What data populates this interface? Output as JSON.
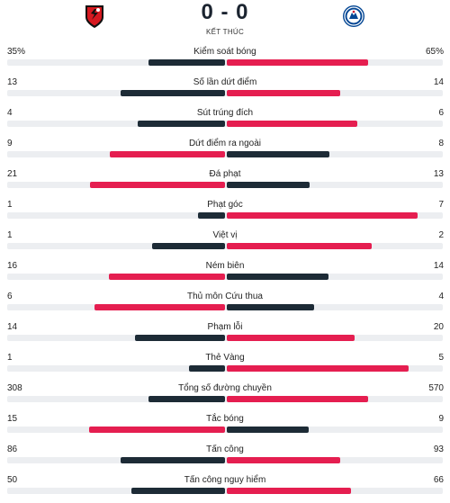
{
  "match": {
    "score": "0 - 0",
    "status": "KẾT THÚC",
    "home_crest": "bournemouth-crest-icon",
    "away_crest": "chelsea-crest-icon"
  },
  "colors": {
    "home_bar": "#1d2b36",
    "away_bar": "#e51e50",
    "track": "#eceef1"
  },
  "stats": [
    {
      "label": "Kiểm soát bóng",
      "home": "35%",
      "away": "65%",
      "home_share": 0.35,
      "away_share": 0.65,
      "home_highlight": false
    },
    {
      "label": "Số lần dứt điểm",
      "home": "13",
      "away": "14",
      "home_share": 0.481,
      "away_share": 0.519,
      "home_highlight": false
    },
    {
      "label": "Sút trúng đích",
      "home": "4",
      "away": "6",
      "home_share": 0.4,
      "away_share": 0.6,
      "home_highlight": false
    },
    {
      "label": "Dứt điểm ra ngoài",
      "home": "9",
      "away": "8",
      "home_share": 0.529,
      "away_share": 0.471,
      "home_highlight": true
    },
    {
      "label": "Đá phạt",
      "home": "21",
      "away": "13",
      "home_share": 0.618,
      "away_share": 0.382,
      "home_highlight": true
    },
    {
      "label": "Phạt góc",
      "home": "1",
      "away": "7",
      "home_share": 0.125,
      "away_share": 0.875,
      "home_highlight": false
    },
    {
      "label": "Việt vị",
      "home": "1",
      "away": "2",
      "home_share": 0.333,
      "away_share": 0.667,
      "home_highlight": false
    },
    {
      "label": "Ném biên",
      "home": "16",
      "away": "14",
      "home_share": 0.533,
      "away_share": 0.467,
      "home_highlight": true
    },
    {
      "label": "Thủ môn Cứu thua",
      "home": "6",
      "away": "4",
      "home_share": 0.6,
      "away_share": 0.4,
      "home_highlight": true
    },
    {
      "label": "Phạm lỗi",
      "home": "14",
      "away": "20",
      "home_share": 0.412,
      "away_share": 0.588,
      "home_highlight": false
    },
    {
      "label": "Thẻ Vàng",
      "home": "1",
      "away": "5",
      "home_share": 0.167,
      "away_share": 0.833,
      "home_highlight": false
    },
    {
      "label": "Tổng số đường chuyền",
      "home": "308",
      "away": "570",
      "home_share": 0.351,
      "away_share": 0.649,
      "home_highlight": false
    },
    {
      "label": "Tắc bóng",
      "home": "15",
      "away": "9",
      "home_share": 0.625,
      "away_share": 0.375,
      "home_highlight": true
    },
    {
      "label": "Tấn công",
      "home": "86",
      "away": "93",
      "home_share": 0.48,
      "away_share": 0.52,
      "home_highlight": false
    },
    {
      "label": "Tấn công nguy hiểm",
      "home": "50",
      "away": "66",
      "home_share": 0.431,
      "away_share": 0.569,
      "home_highlight": false
    }
  ]
}
